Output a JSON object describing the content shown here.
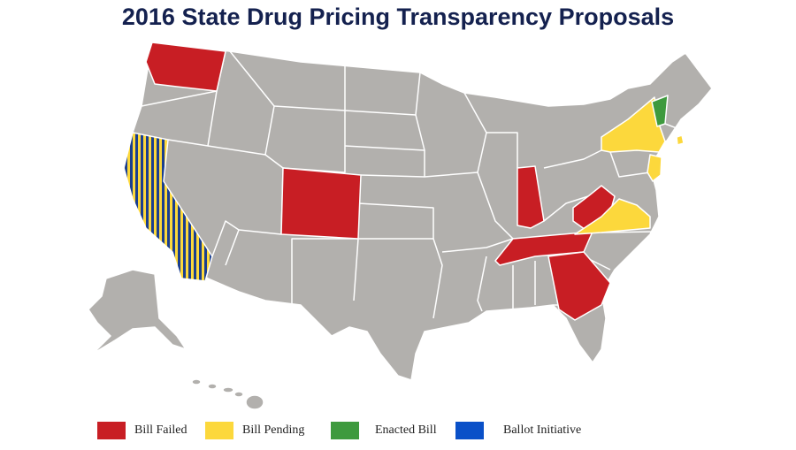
{
  "title": "2016 State Drug Pricing Transparency Proposals",
  "colors": {
    "land": "#b2b0ad",
    "border": "#ffffff",
    "failed": "#c81e24",
    "pending": "#fcd83c",
    "enacted": "#3e9a3e",
    "ballot": "#0a50c8"
  },
  "legend": [
    {
      "label": "Bill Failed",
      "color": "#c81e24"
    },
    {
      "label": "Bill Pending",
      "color": "#fcd83c"
    },
    {
      "label": "Enacted Bill",
      "color": "#3e9a3e"
    },
    {
      "label": "Ballot Initiative",
      "color": "#0a50c8"
    }
  ],
  "states": {
    "failed": [
      "Washington",
      "Colorado",
      "Indiana",
      "Tennessee",
      "Georgia",
      "West Virginia"
    ],
    "pending": [
      "New York",
      "New Jersey",
      "Virginia",
      "Rhode Island"
    ],
    "enacted": [
      "Vermont"
    ],
    "pending_and_ballot": [
      "California"
    ]
  }
}
